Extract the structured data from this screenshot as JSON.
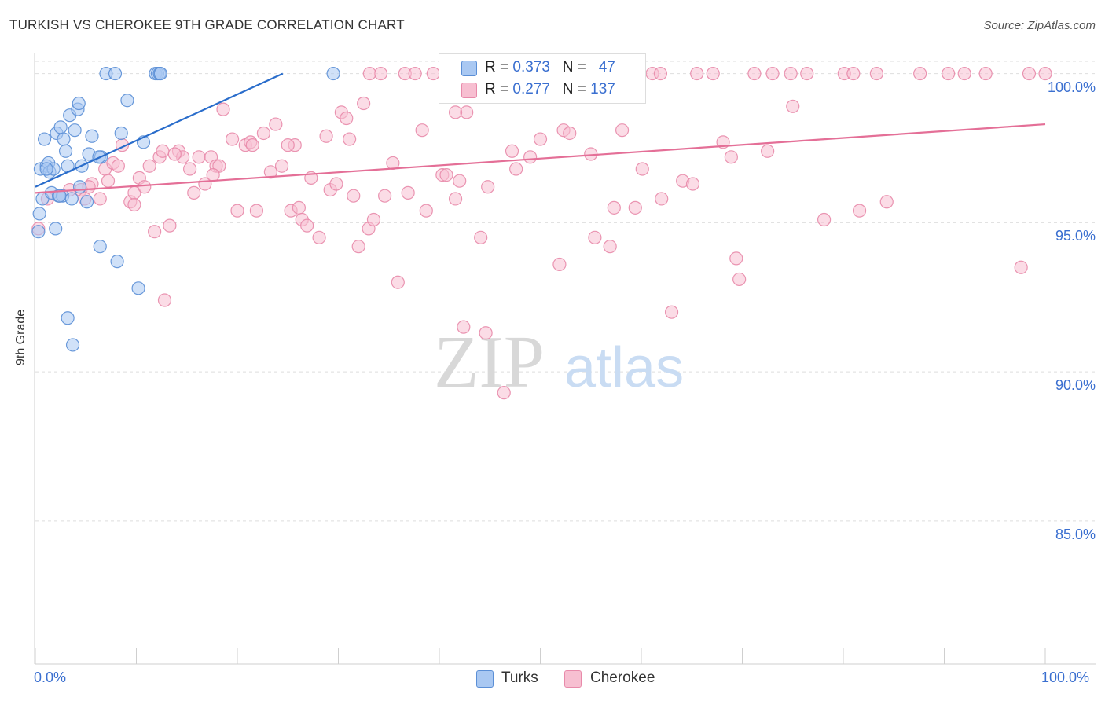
{
  "title": "TURKISH VS CHEROKEE 9TH GRADE CORRELATION CHART",
  "source": "Source: ZipAtlas.com",
  "watermark": {
    "zip": "ZIP",
    "atlas": "atlas"
  },
  "legend_top": {
    "rows": [
      {
        "r_label": "R = ",
        "r_value": "0.373",
        "n_label": "N = ",
        "n_value": "47"
      },
      {
        "r_label": "R = ",
        "r_value": "0.277",
        "n_label": "N = ",
        "n_value": "137"
      }
    ]
  },
  "legend_bottom": [
    "Turks",
    "Cherokee"
  ],
  "colors": {
    "turks_fill": "#a9c8f2",
    "turks_stroke": "#5b8fd6",
    "turks_line": "#2a6dcb",
    "cherokee_fill": "#f7bfd1",
    "cherokee_stroke": "#e88aaa",
    "cherokee_line": "#e46f97",
    "tick_label": "#3a6fd0"
  },
  "chart_data": {
    "type": "scatter",
    "title": "TURKISH VS CHEROKEE 9TH GRADE CORRELATION CHART",
    "xlabel": "",
    "ylabel": "9th Grade",
    "xlim": [
      0,
      100
    ],
    "ylim": [
      80.2,
      100.7
    ],
    "x_tick_labels": [
      "0.0%",
      "100.0%"
    ],
    "y_ticks": [
      85,
      90,
      95,
      100
    ],
    "y_tick_labels": [
      "85.0%",
      "90.0%",
      "95.0%",
      "100.0%"
    ],
    "grid": true,
    "series": [
      {
        "name": "Turks",
        "R": 0.373,
        "N": 47,
        "trend": {
          "x": [
            0,
            24.5
          ],
          "y": [
            96.2,
            100.0
          ]
        },
        "points": [
          [
            0.5,
            96.8
          ],
          [
            0.7,
            95.8
          ],
          [
            0.9,
            97.8
          ],
          [
            1.1,
            96.9
          ],
          [
            1.3,
            97.0
          ],
          [
            1.4,
            96.7
          ],
          [
            1.6,
            96.0
          ],
          [
            1.8,
            96.8
          ],
          [
            2.0,
            94.8
          ],
          [
            2.1,
            98.0
          ],
          [
            2.3,
            95.9
          ],
          [
            2.5,
            98.2
          ],
          [
            2.7,
            95.9
          ],
          [
            2.8,
            97.8
          ],
          [
            3.0,
            97.4
          ],
          [
            3.2,
            96.9
          ],
          [
            3.4,
            98.6
          ],
          [
            3.6,
            95.8
          ],
          [
            3.9,
            98.1
          ],
          [
            4.2,
            98.8
          ],
          [
            4.3,
            99.0
          ],
          [
            4.4,
            96.2
          ],
          [
            4.6,
            96.9
          ],
          [
            5.1,
            95.7
          ],
          [
            5.3,
            97.3
          ],
          [
            5.6,
            97.9
          ],
          [
            6.4,
            94.2
          ],
          [
            6.5,
            97.2
          ],
          [
            7.0,
            100.0
          ],
          [
            7.9,
            100.0
          ],
          [
            8.1,
            93.7
          ],
          [
            8.5,
            98.0
          ],
          [
            9.1,
            99.1
          ],
          [
            10.2,
            92.8
          ],
          [
            10.7,
            97.7
          ],
          [
            11.9,
            100.0
          ],
          [
            12.1,
            100.0
          ],
          [
            12.3,
            100.0
          ],
          [
            12.4,
            100.0
          ],
          [
            29.5,
            100.0
          ],
          [
            0.4,
            95.3
          ],
          [
            0.3,
            94.7
          ],
          [
            3.2,
            91.8
          ],
          [
            3.7,
            90.9
          ],
          [
            1.1,
            96.8
          ],
          [
            2.4,
            95.9
          ],
          [
            6.3,
            97.2
          ]
        ]
      },
      {
        "name": "Cherokee",
        "R": 0.277,
        "N": 137,
        "trend": {
          "x": [
            0,
            100
          ],
          "y": [
            96.0,
            98.3
          ]
        },
        "points": [
          [
            0.3,
            94.8
          ],
          [
            1.2,
            95.8
          ],
          [
            2.4,
            95.9
          ],
          [
            3.4,
            96.1
          ],
          [
            4.5,
            96.1
          ],
          [
            4.9,
            95.8
          ],
          [
            5.6,
            96.3
          ],
          [
            6.4,
            95.8
          ],
          [
            6.9,
            96.8
          ],
          [
            7.2,
            96.4
          ],
          [
            7.7,
            97.0
          ],
          [
            8.2,
            96.9
          ],
          [
            8.6,
            97.6
          ],
          [
            9.4,
            95.7
          ],
          [
            9.8,
            96.0
          ],
          [
            10.3,
            96.5
          ],
          [
            10.8,
            96.2
          ],
          [
            11.3,
            96.9
          ],
          [
            11.8,
            94.7
          ],
          [
            12.3,
            97.2
          ],
          [
            12.8,
            92.4
          ],
          [
            13.3,
            94.9
          ],
          [
            14.2,
            97.4
          ],
          [
            14.6,
            97.2
          ],
          [
            15.3,
            96.8
          ],
          [
            15.7,
            96.0
          ],
          [
            16.2,
            97.2
          ],
          [
            16.8,
            96.3
          ],
          [
            17.4,
            97.2
          ],
          [
            17.9,
            96.9
          ],
          [
            18.2,
            96.9
          ],
          [
            18.6,
            98.8
          ],
          [
            19.5,
            97.8
          ],
          [
            20.0,
            95.4
          ],
          [
            20.8,
            97.6
          ],
          [
            21.3,
            97.7
          ],
          [
            21.9,
            95.4
          ],
          [
            22.6,
            98.0
          ],
          [
            23.3,
            96.7
          ],
          [
            23.8,
            98.3
          ],
          [
            24.4,
            96.9
          ],
          [
            25.3,
            95.4
          ],
          [
            25.7,
            97.6
          ],
          [
            26.1,
            95.5
          ],
          [
            26.4,
            95.1
          ],
          [
            26.9,
            94.9
          ],
          [
            27.3,
            96.5
          ],
          [
            28.1,
            94.5
          ],
          [
            28.8,
            97.9
          ],
          [
            29.2,
            96.1
          ],
          [
            30.3,
            98.7
          ],
          [
            30.8,
            98.5
          ],
          [
            31.1,
            97.8
          ],
          [
            31.5,
            95.9
          ],
          [
            32.0,
            94.2
          ],
          [
            32.5,
            99.0
          ],
          [
            33.0,
            94.8
          ],
          [
            33.5,
            95.1
          ],
          [
            34.2,
            100.0
          ],
          [
            34.6,
            95.9
          ],
          [
            35.4,
            97.0
          ],
          [
            35.9,
            93.0
          ],
          [
            36.6,
            100.0
          ],
          [
            36.9,
            96.0
          ],
          [
            37.6,
            100.0
          ],
          [
            38.3,
            98.1
          ],
          [
            38.7,
            95.4
          ],
          [
            39.4,
            100.0
          ],
          [
            40.3,
            96.6
          ],
          [
            40.7,
            96.6
          ],
          [
            41.6,
            95.8
          ],
          [
            42.0,
            96.4
          ],
          [
            42.4,
            91.5
          ],
          [
            42.7,
            98.7
          ],
          [
            43.5,
            100.0
          ],
          [
            44.1,
            94.5
          ],
          [
            44.8,
            96.2
          ],
          [
            46.0,
            100.0
          ],
          [
            46.4,
            89.3
          ],
          [
            47.2,
            97.4
          ],
          [
            47.6,
            96.8
          ],
          [
            48.3,
            100.0
          ],
          [
            49.0,
            97.2
          ],
          [
            50.0,
            97.8
          ],
          [
            51.1,
            100.0
          ],
          [
            51.9,
            93.6
          ],
          [
            52.3,
            98.1
          ],
          [
            53.6,
            100.0
          ],
          [
            55.0,
            97.3
          ],
          [
            55.4,
            94.5
          ],
          [
            56.4,
            100.0
          ],
          [
            57.3,
            95.5
          ],
          [
            58.1,
            98.1
          ],
          [
            59.4,
            95.5
          ],
          [
            60.1,
            96.8
          ],
          [
            61.1,
            100.0
          ],
          [
            62.0,
            95.8
          ],
          [
            63.0,
            92.0
          ],
          [
            64.1,
            96.4
          ],
          [
            65.1,
            96.3
          ],
          [
            65.5,
            100.0
          ],
          [
            67.1,
            100.0
          ],
          [
            68.1,
            97.7
          ],
          [
            68.9,
            97.2
          ],
          [
            69.4,
            93.8
          ],
          [
            69.7,
            93.1
          ],
          [
            71.2,
            100.0
          ],
          [
            72.5,
            97.4
          ],
          [
            73.0,
            100.0
          ],
          [
            75.0,
            98.9
          ],
          [
            76.4,
            100.0
          ],
          [
            78.1,
            95.1
          ],
          [
            80.1,
            100.0
          ],
          [
            81.0,
            100.0
          ],
          [
            81.6,
            95.4
          ],
          [
            83.3,
            100.0
          ],
          [
            84.3,
            95.7
          ],
          [
            87.6,
            100.0
          ],
          [
            92.0,
            100.0
          ],
          [
            94.1,
            100.0
          ],
          [
            97.6,
            93.5
          ],
          [
            98.4,
            100.0
          ],
          [
            100.0,
            100.0
          ],
          [
            56.9,
            94.2
          ],
          [
            41.6,
            98.7
          ],
          [
            25.0,
            97.6
          ],
          [
            12.6,
            97.4
          ],
          [
            9.8,
            95.6
          ],
          [
            5.3,
            96.2
          ],
          [
            13.8,
            97.3
          ],
          [
            17.6,
            96.6
          ],
          [
            21.5,
            97.6
          ],
          [
            29.8,
            96.3
          ],
          [
            33.1,
            100.0
          ],
          [
            44.6,
            91.3
          ],
          [
            61.9,
            100.0
          ],
          [
            74.8,
            100.0
          ],
          [
            90.4,
            100.0
          ],
          [
            52.9,
            98.0
          ]
        ]
      }
    ]
  }
}
